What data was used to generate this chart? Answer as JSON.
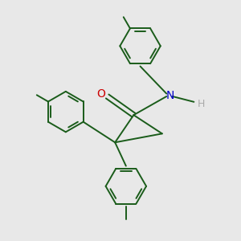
{
  "bg_color": "#e8e8e8",
  "line_color": "#1a5c1a",
  "O_color": "#cc0000",
  "N_color": "#0000cc",
  "H_color": "#aaaaaa",
  "line_width": 1.4,
  "figsize": [
    3.0,
    3.0
  ],
  "dpi": 100,
  "xlim": [
    -1.1,
    1.1
  ],
  "ylim": [
    -1.1,
    1.1
  ]
}
